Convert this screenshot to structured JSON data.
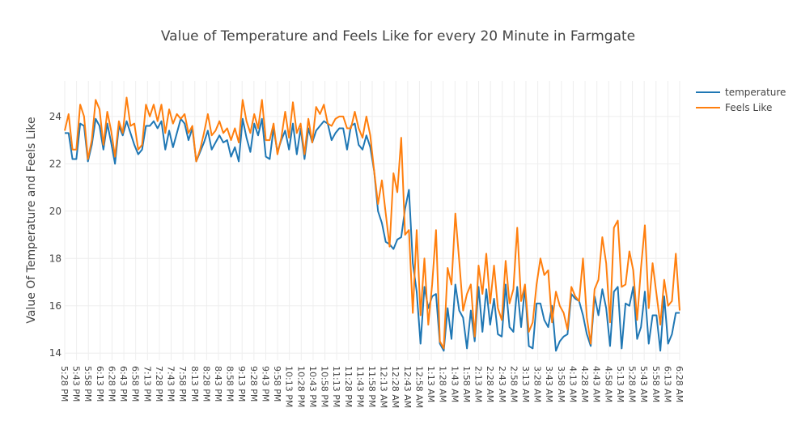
{
  "chart_data": {
    "type": "line",
    "title": "Value of Temperature and Feels Like for every 20 Minute in Farmgate",
    "ylabel": "Value Of Temperature and Feels Like",
    "xlabel": "",
    "ylim": [
      13.7,
      25.5
    ],
    "yticks": [
      14,
      16,
      18,
      20,
      22,
      24
    ],
    "grid": true,
    "legend_position": "top-right",
    "x_tick_labels": [
      "5:28 PM",
      "5:43 PM",
      "5:58 PM",
      "6:13 PM",
      "6:28 PM",
      "6:43 PM",
      "6:58 PM",
      "7:13 PM",
      "7:28 PM",
      "7:43 PM",
      "7:58 PM",
      "8:13 PM",
      "8:28 PM",
      "8:43 PM",
      "8:58 PM",
      "9:13 PM",
      "9:28 PM",
      "9:43 PM",
      "9:58 PM",
      "10:13 PM",
      "10:28 PM",
      "10:43 PM",
      "10:58 PM",
      "11:13 PM",
      "11:28 PM",
      "11:43 PM",
      "11:58 PM",
      "12:13 AM",
      "12:28 AM",
      "12:43 AM",
      "12:58 AM",
      "1:13 AM",
      "1:28 AM",
      "1:43 AM",
      "1:58 AM",
      "2:13 AM",
      "2:28 AM",
      "2:43 AM",
      "2:58 AM",
      "3:13 AM",
      "3:28 AM",
      "3:43 AM",
      "3:58 AM",
      "4:13 AM",
      "4:28 AM",
      "4:43 AM",
      "4:58 AM",
      "5:13 AM",
      "5:28 AM",
      "5:43 AM",
      "5:58 AM",
      "6:13 AM",
      "6:28 AM"
    ],
    "series": [
      {
        "name": "temperature",
        "color": "#1f77b4",
        "values": [
          23.3,
          23.3,
          22.2,
          22.2,
          23.7,
          23.6,
          22.1,
          22.8,
          23.9,
          23.6,
          22.6,
          23.7,
          22.9,
          22.0,
          23.6,
          23.2,
          23.8,
          23.3,
          22.8,
          22.4,
          22.6,
          23.6,
          23.6,
          23.8,
          23.5,
          23.8,
          22.6,
          23.4,
          22.7,
          23.3,
          23.9,
          23.7,
          23.0,
          23.5,
          22.1,
          22.5,
          22.9,
          23.4,
          22.6,
          22.9,
          23.2,
          22.9,
          23.0,
          22.3,
          22.7,
          22.1,
          23.9,
          23.1,
          22.5,
          23.7,
          23.2,
          23.9,
          22.3,
          22.2,
          23.5,
          22.5,
          23.0,
          23.4,
          22.6,
          23.7,
          22.4,
          23.5,
          22.2,
          23.5,
          22.9,
          23.4,
          23.6,
          23.8,
          23.7,
          23.0,
          23.3,
          23.5,
          23.5,
          22.6,
          23.6,
          23.7,
          22.8,
          22.6,
          23.2,
          22.7,
          21.7,
          20.0,
          19.5,
          18.7,
          18.6,
          18.4,
          18.8,
          18.9,
          20.1,
          20.9,
          17.8,
          16.6,
          14.4,
          16.8,
          15.9,
          16.4,
          16.5,
          14.4,
          14.1,
          15.9,
          14.6,
          16.9,
          15.8,
          15.5,
          14.2,
          15.8,
          14.5,
          16.8,
          14.9,
          16.7,
          15.2,
          16.3,
          14.8,
          14.7,
          16.9,
          15.1,
          14.9,
          16.8,
          15.1,
          16.8,
          14.3,
          14.2,
          16.1,
          16.1,
          15.4,
          15.1,
          16.0,
          14.1,
          14.5,
          14.7,
          14.8,
          16.5,
          16.3,
          16.2,
          15.6,
          14.8,
          14.3,
          16.4,
          15.6,
          16.7,
          15.9,
          14.3,
          16.6,
          16.8,
          14.2,
          16.1,
          16.0,
          16.8,
          14.6,
          15.1,
          16.6,
          14.4,
          15.6,
          15.6,
          14.1,
          16.4,
          14.4,
          14.8,
          15.7,
          15.7
        ]
      },
      {
        "name": "Feels Like",
        "color": "#ff7f0e",
        "values": [
          23.4,
          24.1,
          22.6,
          22.6,
          24.5,
          24.0,
          22.2,
          23.0,
          24.7,
          24.3,
          22.8,
          24.2,
          23.4,
          22.3,
          23.8,
          23.3,
          24.8,
          23.6,
          23.7,
          22.6,
          22.8,
          24.5,
          24.0,
          24.5,
          23.8,
          24.5,
          23.3,
          24.3,
          23.7,
          24.1,
          23.9,
          24.1,
          23.3,
          23.6,
          22.1,
          22.6,
          23.3,
          24.1,
          23.2,
          23.4,
          23.8,
          23.3,
          23.5,
          23.0,
          23.5,
          22.9,
          24.7,
          23.8,
          23.3,
          24.1,
          23.5,
          24.7,
          23.0,
          23.0,
          23.7,
          22.4,
          23.1,
          24.2,
          23.1,
          24.6,
          23.3,
          23.7,
          22.4,
          23.9,
          22.9,
          24.4,
          24.1,
          24.5,
          23.7,
          23.6,
          23.9,
          24.0,
          24.0,
          23.5,
          23.5,
          24.2,
          23.5,
          23.1,
          24.0,
          23.2,
          21.7,
          20.3,
          21.3,
          19.9,
          18.5,
          21.6,
          20.8,
          23.1,
          19.0,
          19.2,
          15.7,
          19.2,
          15.6,
          18.0,
          15.2,
          16.9,
          19.2,
          14.5,
          14.2,
          17.6,
          16.9,
          19.9,
          17.9,
          15.8,
          16.5,
          16.9,
          14.7,
          17.7,
          16.5,
          18.2,
          16.1,
          17.7,
          15.9,
          15.4,
          17.9,
          16.1,
          16.7,
          19.3,
          16.2,
          16.9,
          14.9,
          15.3,
          16.9,
          18.0,
          17.3,
          17.5,
          15.3,
          16.6,
          16.0,
          15.7,
          15.0,
          16.8,
          16.4,
          16.2,
          18.0,
          15.5,
          14.4,
          16.7,
          17.1,
          18.9,
          17.8,
          15.3,
          19.3,
          19.6,
          16.8,
          16.9,
          18.3,
          17.5,
          15.4,
          17.6,
          19.4,
          15.9,
          17.8,
          16.5,
          15.2,
          17.1,
          16.0,
          16.2,
          18.2,
          15.8
        ]
      }
    ]
  }
}
